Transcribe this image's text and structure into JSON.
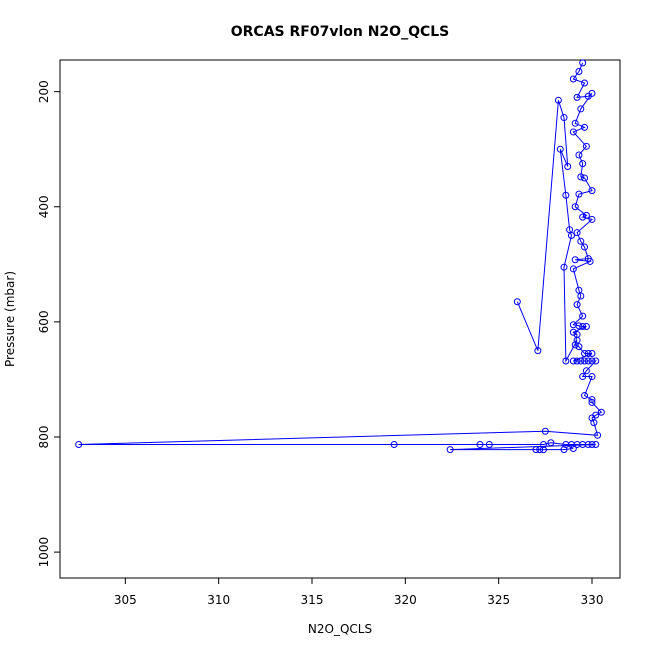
{
  "chart_data": {
    "type": "line",
    "title": "ORCAS RF07vlon N2O_QCLS",
    "xlabel": "N2O_QCLS",
    "ylabel": "Pressure (mbar)",
    "xlim": [
      301.5,
      331.5
    ],
    "ylim": [
      1045,
      145
    ],
    "y_reversed": true,
    "xticks": [
      305,
      310,
      315,
      320,
      325,
      330
    ],
    "yticks": [
      200,
      400,
      600,
      800,
      1000
    ],
    "grid": false,
    "legend": "none",
    "marker": "open-circle",
    "color": "#0000ff",
    "series": [
      {
        "points": [
          [
            329.5,
            150
          ],
          [
            329.3,
            165
          ],
          [
            329.0,
            178
          ],
          [
            329.6,
            185
          ],
          [
            329.2,
            210
          ],
          [
            329.8,
            208
          ],
          [
            330.0,
            203
          ],
          [
            329.4,
            230
          ],
          [
            329.1,
            255
          ],
          [
            329.6,
            262
          ],
          [
            329.0,
            270
          ],
          [
            329.7,
            295
          ],
          [
            329.3,
            310
          ],
          [
            329.5,
            325
          ],
          [
            329.4,
            348
          ],
          [
            329.6,
            350
          ],
          [
            330.0,
            372
          ],
          [
            329.3,
            378
          ],
          [
            329.1,
            400
          ],
          [
            329.7,
            415
          ],
          [
            329.5,
            418
          ],
          [
            330.0,
            422
          ],
          [
            329.2,
            445
          ],
          [
            329.4,
            460
          ],
          [
            329.6,
            470
          ],
          [
            329.8,
            490
          ],
          [
            329.1,
            492
          ],
          [
            329.9,
            495
          ],
          [
            329.0,
            508
          ],
          [
            329.3,
            545
          ],
          [
            329.4,
            555
          ],
          [
            329.2,
            570
          ],
          [
            329.5,
            590
          ],
          [
            329.0,
            605
          ],
          [
            329.3,
            607
          ],
          [
            329.5,
            608
          ],
          [
            329.7,
            608
          ],
          [
            329.0,
            618
          ],
          [
            329.2,
            622
          ],
          [
            329.1,
            640
          ],
          [
            329.3,
            643
          ],
          [
            329.6,
            655
          ],
          [
            329.8,
            655
          ],
          [
            330.0,
            655
          ],
          [
            329.0,
            668
          ],
          [
            329.2,
            668
          ],
          [
            329.4,
            668
          ],
          [
            329.6,
            668
          ],
          [
            329.8,
            668
          ],
          [
            330.0,
            668
          ],
          [
            330.2,
            668
          ],
          [
            329.7,
            685
          ],
          [
            329.5,
            695
          ],
          [
            330.0,
            695
          ],
          [
            329.6,
            728
          ],
          [
            330.0,
            735
          ],
          [
            330.0,
            740
          ],
          [
            330.5,
            757
          ],
          [
            330.2,
            762
          ],
          [
            330.0,
            767
          ],
          [
            330.1,
            775
          ],
          [
            330.3,
            797
          ],
          [
            327.5,
            790
          ],
          [
            302.5,
            813
          ],
          [
            319.4,
            813
          ],
          [
            324.0,
            813
          ],
          [
            324.5,
            813
          ],
          [
            327.4,
            813
          ],
          [
            327.8,
            810
          ],
          [
            328.6,
            813
          ],
          [
            328.9,
            813
          ],
          [
            329.2,
            813
          ],
          [
            329.5,
            813
          ],
          [
            329.8,
            813
          ],
          [
            330.0,
            813
          ],
          [
            330.2,
            813
          ],
          [
            322.4,
            822
          ],
          [
            327.0,
            822
          ],
          [
            327.2,
            822
          ],
          [
            327.4,
            822
          ],
          [
            328.5,
            822
          ],
          [
            329.0,
            820
          ]
        ]
      },
      {
        "points": [
          [
            326.0,
            565
          ],
          [
            327.1,
            650
          ],
          [
            328.2,
            215
          ],
          [
            328.5,
            245
          ],
          [
            328.7,
            330
          ],
          [
            328.3,
            300
          ],
          [
            328.6,
            380
          ],
          [
            328.8,
            440
          ],
          [
            328.9,
            450
          ],
          [
            328.5,
            505
          ],
          [
            328.6,
            668
          ],
          [
            329.2,
            632
          ]
        ]
      }
    ]
  }
}
